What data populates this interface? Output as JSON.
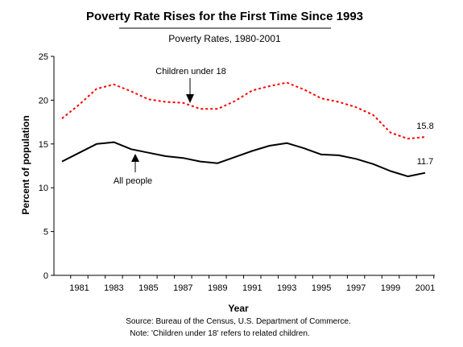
{
  "chart_data": {
    "type": "line",
    "title": "Poverty Rate Rises for the First Time Since 1993",
    "subtitle": "Poverty Rates, 1980-2001",
    "xlabel": "Year",
    "ylabel": "Percent of population",
    "xlim": [
      1980,
      2001
    ],
    "ylim": [
      0,
      25
    ],
    "yticks": [
      0,
      5,
      10,
      15,
      20,
      25
    ],
    "xtick_labels": [
      1981,
      1983,
      1985,
      1987,
      1989,
      1991,
      1993,
      1995,
      1997,
      1999,
      2001
    ],
    "grid": false,
    "x": [
      1980,
      1981,
      1982,
      1983,
      1984,
      1985,
      1986,
      1987,
      1988,
      1989,
      1990,
      1991,
      1992,
      1993,
      1994,
      1995,
      1996,
      1997,
      1998,
      1999,
      2000,
      2001
    ],
    "series": [
      {
        "name": "Children under 18",
        "color": "#ff0000",
        "style": "dotted",
        "values": [
          17.9,
          19.5,
          21.3,
          21.8,
          21.0,
          20.1,
          19.8,
          19.7,
          19.0,
          19.0,
          19.9,
          21.1,
          21.6,
          22.0,
          21.2,
          20.2,
          19.8,
          19.2,
          18.3,
          16.3,
          15.6,
          15.8
        ]
      },
      {
        "name": "All people",
        "color": "#000000",
        "style": "solid",
        "values": [
          13.0,
          14.0,
          15.0,
          15.2,
          14.4,
          14.0,
          13.6,
          13.4,
          13.0,
          12.8,
          13.5,
          14.2,
          14.8,
          15.1,
          14.5,
          13.8,
          13.7,
          13.3,
          12.7,
          11.9,
          11.3,
          11.7
        ]
      }
    ],
    "end_labels": [
      "15.8",
      "11.7"
    ],
    "annotations": [
      "Children under 18",
      "All people"
    ],
    "source_note": "Source: Bureau of the Census, U.S. Department of Commerce.",
    "footnote": "Note: 'Children under 18' refers to related children."
  }
}
